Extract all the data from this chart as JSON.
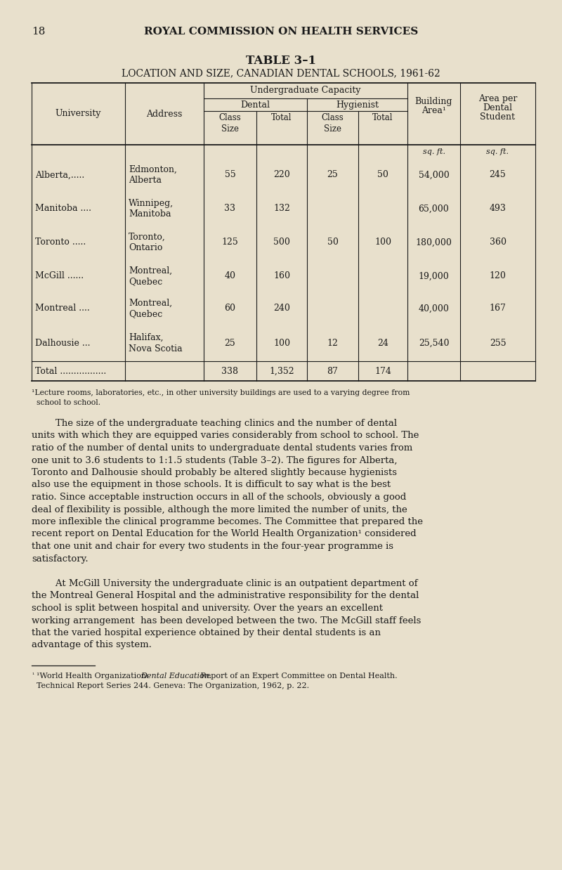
{
  "bg_color": "#e8e0cc",
  "page_number": "18",
  "header": "ROYAL COMMISSION ON HEALTH SERVICES",
  "table_title": "TABLE 3–1",
  "table_subtitle": "LOCATION AND SIZE, CANADIAN DENTAL SCHOOLS, 1961-62",
  "rows": [
    {
      "univ": "Alberta,.....",
      "addr1": "Edmonton,",
      "addr2": "Alberta",
      "d_class": "55",
      "d_total": "220",
      "h_class": "25",
      "h_total": "50",
      "building": "54,000",
      "area": "245"
    },
    {
      "univ": "Manitoba ....",
      "addr1": "Winnipeg,",
      "addr2": "Manitoba",
      "d_class": "33",
      "d_total": "132",
      "h_class": "",
      "h_total": "",
      "building": "65,000",
      "area": "493"
    },
    {
      "univ": "Toronto .....",
      "addr1": "Toronto,",
      "addr2": "Ontario",
      "d_class": "125",
      "d_total": "500",
      "h_class": "50",
      "h_total": "100",
      "building": "180,000",
      "area": "360"
    },
    {
      "univ": "McGill ......",
      "addr1": "Montreal,",
      "addr2": "Quebec",
      "d_class": "40",
      "d_total": "160",
      "h_class": "",
      "h_total": "",
      "building": "19,000",
      "area": "120"
    },
    {
      "univ": "Montreal ....",
      "addr1": "Montreal,",
      "addr2": "Quebec",
      "d_class": "60",
      "d_total": "240",
      "h_class": "",
      "h_total": "",
      "building": "40,000",
      "area": "167"
    },
    {
      "univ": "Dalhousie ...",
      "addr1": "Halifax,",
      "addr2": "Nova Scotia",
      "d_class": "25",
      "d_total": "100",
      "h_class": "12",
      "h_total": "24",
      "building": "25,540",
      "area": "255"
    }
  ],
  "total_row": {
    "label": "Total .................",
    "d_class": "338",
    "d_total": "1,352",
    "h_class": "87",
    "h_total": "174"
  },
  "footnote1_a": "¹Lecture rooms, laboratories, etc., in other university buildings are used to a varying degree from",
  "footnote1_b": "  school to school.",
  "para1_lines": [
    "        The size of the undergraduate teaching clinics and the number of dental",
    "units with which they are equipped varies considerably from school to school. The",
    "ratio of the number of dental units to undergraduate dental students varies from",
    "one unit to 3.6 students to 1:1.5 students (Table 3–2). The figures for Alberta,",
    "Toronto and Dalhousie should probably be altered slightly because hygienists",
    "also use the equipment in those schools. It is difficult to say what is the best",
    "ratio. Since acceptable instruction occurs in all of the schools, obviously a good",
    "deal of flexibility is possible, although the more limited the number of units, the",
    "more inflexible the clinical programme becomes. The Committee that prepared the",
    "recent report on Dental Education for the World Health Organization¹ considered",
    "that one unit and chair for every two students in the four-year programme is",
    "satisfactory."
  ],
  "para2_lines": [
    "        At McGill University the undergraduate clinic is an outpatient department of",
    "the Montreal General Hospital and the administrative responsibility for the dental",
    "school is split between hospital and university. Over the years an excellent",
    "working arrangement  has been developed between the two. The McGill staff feels",
    "that the varied hospital experience obtained by their dental students is an",
    "advantage of this system."
  ],
  "fn2_normal1": "¹World Health Organization: ",
  "fn2_italic": "Dental Education.",
  "fn2_normal2": " Report of an Expert Committee on Dental Health.",
  "fn2_line2": "  Technical Report Series 244. Geneva: The Organization, 1962, p. 22."
}
